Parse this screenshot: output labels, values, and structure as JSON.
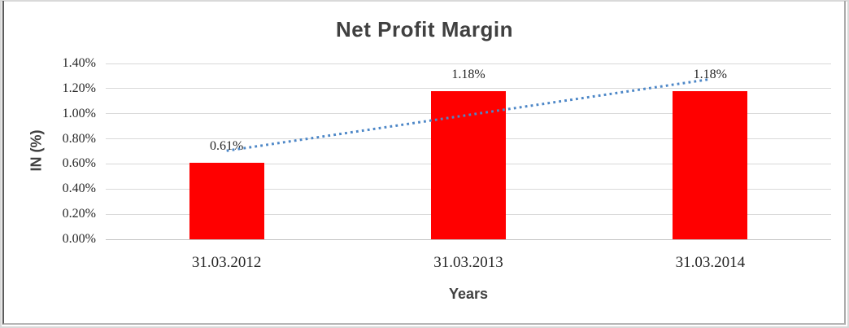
{
  "chart_data": {
    "type": "bar",
    "title": "Net Profit Margin",
    "xlabel": "Years",
    "ylabel": "IN (%)",
    "categories": [
      "31.03.2012",
      "31.03.2013",
      "31.03.2014"
    ],
    "values": [
      0.61,
      1.18,
      1.18
    ],
    "data_labels": [
      "0.61%",
      "1.18%",
      "1.18%"
    ],
    "ylim": [
      0,
      1.4
    ],
    "ytick_step": 0.2,
    "ytick_labels": [
      "0.00%",
      "0.20%",
      "0.40%",
      "0.60%",
      "0.80%",
      "1.00%",
      "1.20%",
      "1.40%"
    ],
    "grid": true,
    "legend_position": "none",
    "trendline": {
      "type": "linear",
      "style": "dotted",
      "start_value": 0.705,
      "end_value": 1.275
    },
    "colors": {
      "bar": "#ff0000",
      "trendline": "#4d87c7",
      "gridline": "#d9d9d9",
      "axis_line": "#c3c3c3",
      "heading_text": "#404040",
      "tick_text": "#262626"
    }
  }
}
